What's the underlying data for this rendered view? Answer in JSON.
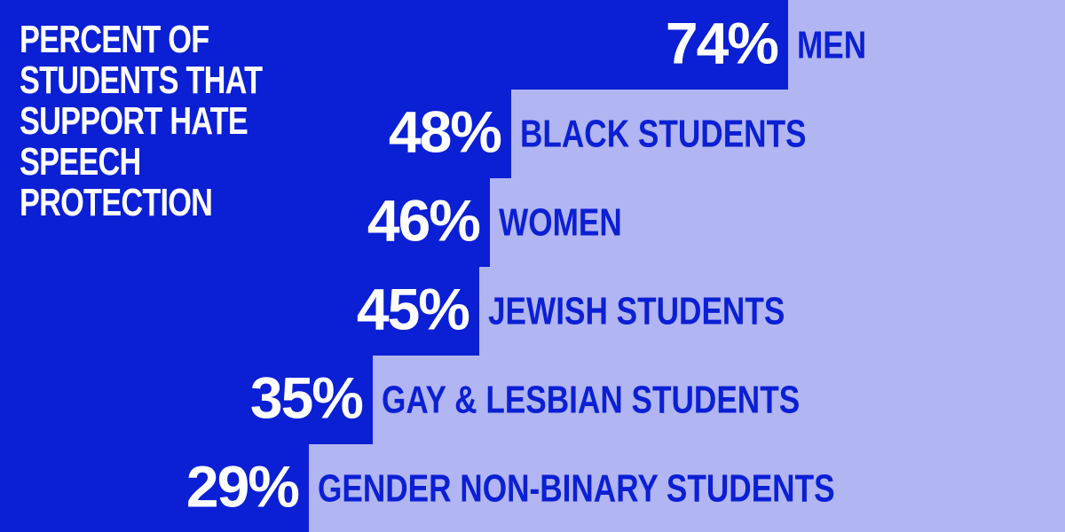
{
  "chart_data": {
    "type": "bar",
    "orientation": "horizontal",
    "title": "PERCENT OF STUDENTS THAT SUPPORT HATE SPEECH PROTECTION",
    "categories": [
      "MEN",
      "BLACK STUDENTS",
      "WOMEN",
      "JEWISH STUDENTS",
      "GAY & LESBIAN STUDENTS",
      "GENDER NON-BINARY STUDENTS"
    ],
    "values": [
      74,
      48,
      46,
      45,
      35,
      29
    ],
    "value_labels": [
      "74%",
      "48%",
      "46%",
      "45%",
      "35%",
      "29%"
    ],
    "xlim": [
      0,
      100
    ],
    "color": "#0b1fd4",
    "background_color": "#b1b5f1"
  }
}
